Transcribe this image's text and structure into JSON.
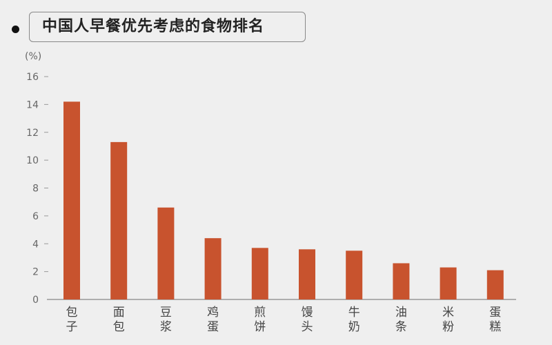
{
  "chart_data": {
    "type": "bar",
    "title": "中国人早餐优先考虑的食物排名",
    "ylabel": "(%)",
    "xlabel": "",
    "ylim": [
      0,
      16
    ],
    "yticks": [
      0,
      2,
      4,
      6,
      8,
      10,
      12,
      14,
      16
    ],
    "categories": [
      "包子",
      "面包",
      "豆浆",
      "鸡蛋",
      "煎饼",
      "馒头",
      "牛奶",
      "油条",
      "米粉",
      "蛋糕"
    ],
    "values": [
      14.2,
      11.3,
      6.6,
      4.4,
      3.7,
      3.6,
      3.5,
      2.6,
      2.3,
      2.1
    ],
    "grid": false,
    "bar_color": "#c8532e"
  }
}
